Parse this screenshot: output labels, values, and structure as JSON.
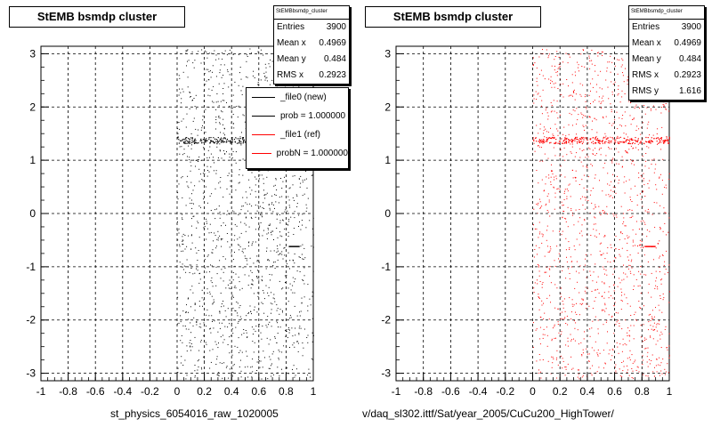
{
  "chart_data": [
    {
      "type": "scatter",
      "title": "StEMB bsmdp cluster",
      "xlabel": "st_physics_6054016_raw_1020005",
      "ylabel": "",
      "xlim": [
        -1,
        1
      ],
      "ylim": [
        -3.14,
        3.14
      ],
      "x_ticks": [
        "-1",
        "-0.8",
        "-0.6",
        "-0.4",
        "-0.2",
        "0",
        "0.2",
        "0.4",
        "0.6",
        "0.8",
        "1"
      ],
      "y_ticks": [
        "-3",
        "-2",
        "-1",
        "0",
        "1",
        "2",
        "3"
      ],
      "grid": true,
      "marker_color": "#000000",
      "series": [
        {
          "points_region": {
            "x": [
              0,
              1
            ],
            "y": [
              -3.1,
              3.1
            ]
          },
          "count": 3900
        }
      ],
      "band": {
        "y": 1.38,
        "x": [
          0,
          1
        ]
      },
      "stats": {
        "header": "StEMBbsmdp_cluster",
        "rows": [
          {
            "label": "Entries",
            "value": "3900"
          },
          {
            "label": "Mean x",
            "value": "0.4969"
          },
          {
            "label": "Mean y",
            "value": "0.484"
          },
          {
            "label": "RMS x",
            "value": "0.2923"
          }
        ]
      },
      "legend": [
        {
          "label": "_file0 (new)",
          "color": "#000000"
        },
        {
          "label": "prob = 1.000000",
          "color": "#000000"
        },
        {
          "label": "_file1 (ref)",
          "color": "#ff0000"
        },
        {
          "label": "probN = 1.000000",
          "color": "#ff0000"
        }
      ]
    },
    {
      "type": "scatter",
      "title": "StEMB bsmdp cluster",
      "xlabel": "v/daq_sl302.ittf/Sat/year_2005/CuCu200_HighTower/",
      "ylabel": "",
      "xlim": [
        -1,
        1
      ],
      "ylim": [
        -3.14,
        3.14
      ],
      "x_ticks": [
        "-1",
        "-0.8",
        "-0.6",
        "-0.4",
        "-0.2",
        "0",
        "0.2",
        "0.4",
        "0.6",
        "0.8",
        "1"
      ],
      "y_ticks": [
        "-3",
        "-2",
        "-1",
        "0",
        "1",
        "2",
        "3"
      ],
      "grid": true,
      "marker_color": "#ff0000",
      "series": [
        {
          "points_region": {
            "x": [
              0,
              1
            ],
            "y": [
              -3.1,
              3.1
            ]
          },
          "count": 3900
        }
      ],
      "band": {
        "y": 1.38,
        "x": [
          0,
          1
        ]
      },
      "stats": {
        "header": "StEMBbsmdp_cluster",
        "rows": [
          {
            "label": "Entries",
            "value": "3900"
          },
          {
            "label": "Mean x",
            "value": "0.4969"
          },
          {
            "label": "Mean y",
            "value": "0.484"
          },
          {
            "label": "RMS x",
            "value": "0.2923"
          },
          {
            "label": "RMS y",
            "value": "1.616"
          }
        ]
      }
    }
  ]
}
